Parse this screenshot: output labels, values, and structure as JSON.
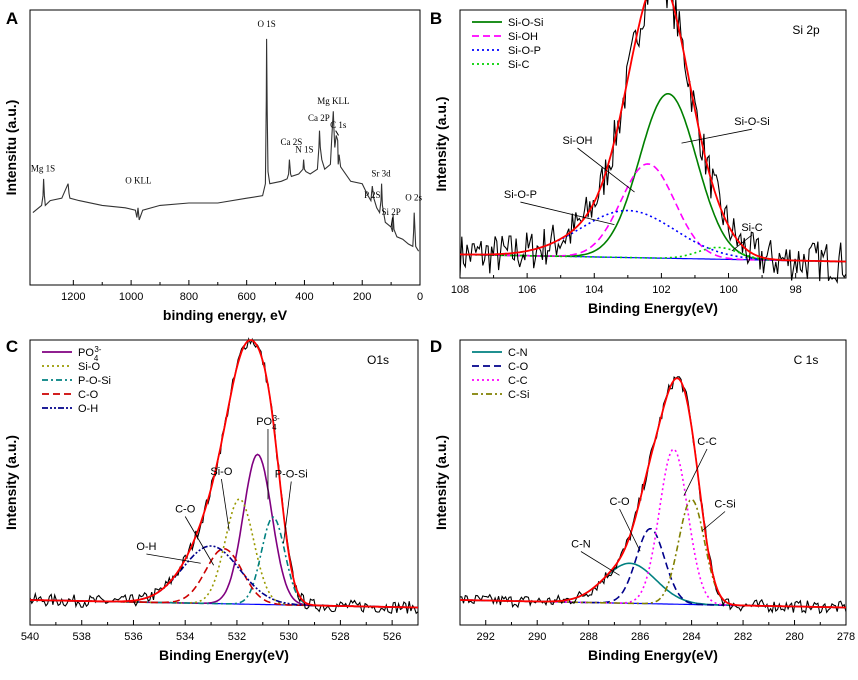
{
  "figure_label": "4-panel XPS spectra figure",
  "chart_data": [
    {
      "panel": "A",
      "type": "line",
      "title": "",
      "xlabel": "binding energy, eV",
      "ylabel": "Intensitu (a.u.)",
      "xlim": [
        1350,
        0
      ],
      "xticks": [
        1200,
        1000,
        800,
        600,
        400,
        200,
        0
      ],
      "series": [
        {
          "name": "survey",
          "color": "#333333",
          "x": [
            1340,
            1310,
            1305,
            1303,
            1300,
            1297,
            1280,
            1240,
            1218,
            1215,
            1212,
            1180,
            1100,
            1020,
            985,
            980,
            976,
            972,
            960,
            900,
            800,
            700,
            600,
            545,
            535,
            532,
            531,
            529,
            526,
            520,
            480,
            460,
            455,
            452,
            448,
            445,
            420,
            405,
            403,
            400,
            395,
            380,
            355,
            350,
            348,
            345,
            340,
            330,
            310,
            305,
            300,
            298,
            295,
            290,
            285,
            283,
            280,
            275,
            240,
            200,
            180,
            170,
            165,
            160,
            150,
            140,
            135,
            133,
            130,
            120,
            100,
            95,
            93,
            90,
            80,
            60,
            40,
            25,
            22,
            20,
            15,
            5
          ],
          "y": [
            0.28,
            0.31,
            0.35,
            0.42,
            0.35,
            0.31,
            0.33,
            0.34,
            0.4,
            0.36,
            0.34,
            0.33,
            0.31,
            0.3,
            0.29,
            0.26,
            0.3,
            0.25,
            0.29,
            0.31,
            0.32,
            0.32,
            0.34,
            0.35,
            0.4,
            0.75,
            1.0,
            0.7,
            0.45,
            0.4,
            0.41,
            0.42,
            0.44,
            0.5,
            0.44,
            0.43,
            0.44,
            0.46,
            0.5,
            0.46,
            0.45,
            0.44,
            0.46,
            0.55,
            0.62,
            0.55,
            0.5,
            0.46,
            0.48,
            0.6,
            0.7,
            0.63,
            0.55,
            0.6,
            0.58,
            0.48,
            0.52,
            0.47,
            0.41,
            0.4,
            0.35,
            0.33,
            0.39,
            0.34,
            0.3,
            0.28,
            0.33,
            0.4,
            0.31,
            0.24,
            0.22,
            0.2,
            0.27,
            0.21,
            0.18,
            0.17,
            0.15,
            0.14,
            0.2,
            0.28,
            0.14,
            0.12
          ]
        }
      ],
      "annotations": [
        {
          "text": "Mg 1S",
          "x": 1305,
          "y": 0.45
        },
        {
          "text": "O KLL",
          "x": 975,
          "y": 0.4
        },
        {
          "text": "O 1S",
          "x": 531,
          "y": 1.05
        },
        {
          "text": "Ca 2S",
          "x": 445,
          "y": 0.56
        },
        {
          "text": "N 1S",
          "x": 400,
          "y": 0.53
        },
        {
          "text": "Ca 2P",
          "x": 350,
          "y": 0.66
        },
        {
          "text": "Mg KLL",
          "x": 300,
          "y": 0.73
        },
        {
          "text": "C 1s",
          "x": 283,
          "y": 0.63
        },
        {
          "text": "Sr 3d",
          "x": 135,
          "y": 0.43
        },
        {
          "text": "P 2S",
          "x": 165,
          "y": 0.34
        },
        {
          "text": "O 2s",
          "x": 22,
          "y": 0.33
        },
        {
          "text": "Si 2P",
          "x": 100,
          "y": 0.27
        }
      ]
    },
    {
      "panel": "B",
      "type": "line",
      "title": "Si 2p",
      "xlabel": "Binding Energy(eV)",
      "ylabel": "Intensity (a.u.)",
      "xlim": [
        108,
        96.5
      ],
      "xticks": [
        108,
        106,
        104,
        102,
        100,
        98
      ],
      "legend": [
        "Si-O-Si",
        "Si-OH",
        "Si-O-P",
        "Si-C"
      ],
      "series": [
        {
          "name": "Si-O-Si",
          "color": "#008000",
          "style": "solid",
          "center": 101.8,
          "height": 0.7,
          "width": 0.85
        },
        {
          "name": "Si-OH",
          "color": "#ff00ff",
          "style": "dash",
          "center": 102.4,
          "height": 0.4,
          "width": 0.8
        },
        {
          "name": "Si-O-P",
          "color": "#0000ff",
          "style": "dot",
          "center": 103.0,
          "height": 0.2,
          "width": 1.4
        },
        {
          "name": "Si-C",
          "color": "#00d000",
          "style": "dot",
          "center": 100.3,
          "height": 0.05,
          "width": 0.6
        },
        {
          "name": "fit",
          "color": "#ff0000",
          "style": "solid"
        },
        {
          "name": "raw",
          "color": "#000000",
          "style": "solid"
        }
      ],
      "annotations": [
        {
          "text": "Si-OH",
          "x": 104.5,
          "y": 0.55
        },
        {
          "text": "Si-O-Si",
          "x": 99.3,
          "y": 0.63
        },
        {
          "text": "Si-O-P",
          "x": 106.2,
          "y": 0.32
        },
        {
          "text": "Si-C",
          "x": 99.3,
          "y": 0.18
        }
      ]
    },
    {
      "panel": "C",
      "type": "line",
      "title": "O1s",
      "xlabel": "Binding Energy(eV)",
      "ylabel": "Intensity (a.u.)",
      "xlim": [
        540,
        525
      ],
      "xticks": [
        540,
        538,
        536,
        534,
        532,
        530,
        528,
        526
      ],
      "legend": [
        "PO4 3-",
        "Si-O",
        "P-O-Si",
        "C-O",
        "O-H"
      ],
      "series": [
        {
          "name": "PO4 3-",
          "color": "#800080",
          "style": "solid",
          "center": 531.2,
          "height": 0.6,
          "width": 0.55
        },
        {
          "name": "Si-O",
          "color": "#999900",
          "style": "dot",
          "center": 531.9,
          "height": 0.42,
          "width": 0.55
        },
        {
          "name": "P-O-Si",
          "color": "#008080",
          "style": "dashdot",
          "center": 530.6,
          "height": 0.35,
          "width": 0.45
        },
        {
          "name": "C-O",
          "color": "#cc0000",
          "style": "dash",
          "center": 532.5,
          "height": 0.22,
          "width": 0.7
        },
        {
          "name": "O-H",
          "color": "#00008b",
          "style": "dashdotdot",
          "center": 533.0,
          "height": 0.23,
          "width": 1.1
        },
        {
          "name": "fit",
          "color": "#ff0000",
          "style": "solid"
        },
        {
          "name": "raw",
          "color": "#000000",
          "style": "solid"
        }
      ],
      "annotations": [
        {
          "text": "PO4 3-",
          "x": 530.8,
          "y": 0.78
        },
        {
          "text": "Si-O",
          "x": 532.6,
          "y": 0.58
        },
        {
          "text": "P-O-Si",
          "x": 529.9,
          "y": 0.57
        },
        {
          "text": "C-O",
          "x": 534.0,
          "y": 0.43
        },
        {
          "text": "O-H",
          "x": 535.5,
          "y": 0.28
        }
      ]
    },
    {
      "panel": "D",
      "type": "line",
      "title": "C 1s",
      "xlabel": "Binding Energy(eV)",
      "ylabel": "Intensity (a.u.)",
      "xlim": [
        293,
        278
      ],
      "xticks": [
        292,
        290,
        288,
        286,
        284,
        282,
        280,
        278
      ],
      "legend": [
        "C-N",
        "C-O",
        "C-C",
        "C-Si"
      ],
      "series": [
        {
          "name": "C-N",
          "color": "#008080",
          "style": "solid",
          "center": 286.4,
          "height": 0.16,
          "width": 1.0
        },
        {
          "name": "C-O",
          "color": "#00008b",
          "style": "dash",
          "center": 285.6,
          "height": 0.3,
          "width": 0.55
        },
        {
          "name": "C-C",
          "color": "#ff00ff",
          "style": "dot",
          "center": 284.7,
          "height": 0.62,
          "width": 0.55
        },
        {
          "name": "C-Si",
          "color": "#808000",
          "style": "dashdot",
          "center": 284.0,
          "height": 0.42,
          "width": 0.5
        },
        {
          "name": "fit",
          "color": "#ff0000",
          "style": "solid"
        },
        {
          "name": "raw",
          "color": "#000000",
          "style": "solid"
        }
      ],
      "annotations": [
        {
          "text": "C-C",
          "x": 283.4,
          "y": 0.7
        },
        {
          "text": "C-Si",
          "x": 282.7,
          "y": 0.45
        },
        {
          "text": "C-O",
          "x": 286.8,
          "y": 0.46
        },
        {
          "text": "C-N",
          "x": 288.3,
          "y": 0.29
        }
      ]
    }
  ]
}
